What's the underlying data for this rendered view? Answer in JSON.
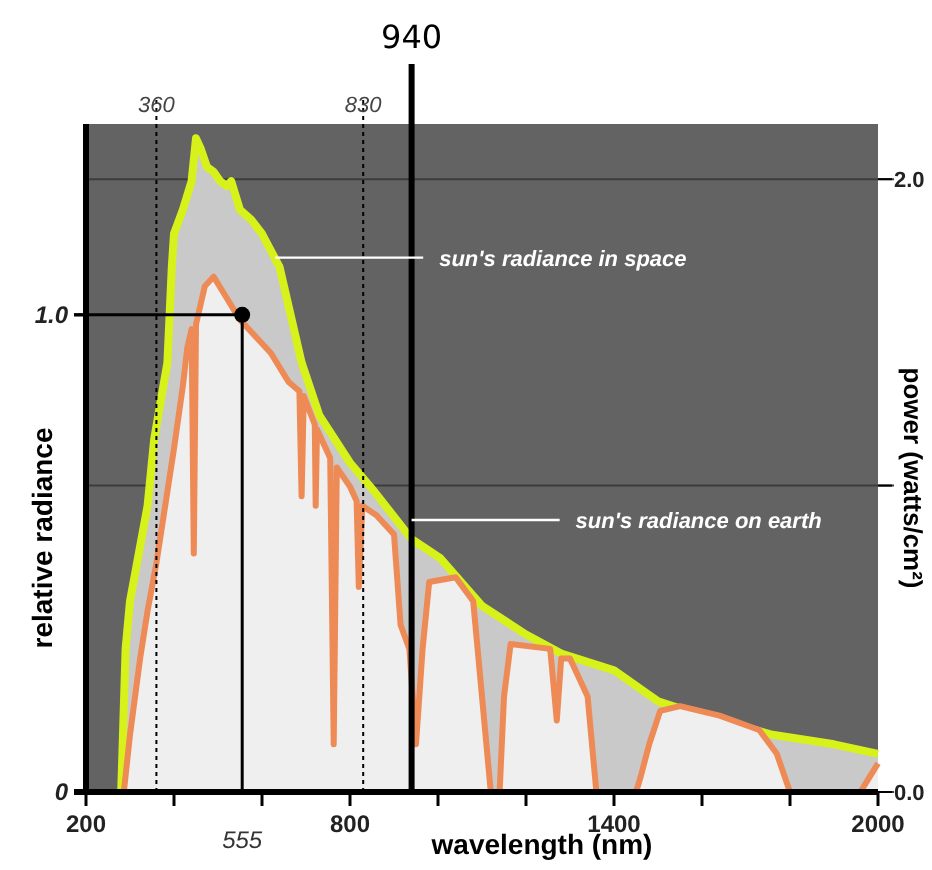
{
  "chart_data": {
    "type": "area",
    "xlabel": "wavelength (nm)",
    "ylabel": "relative radiance",
    "y2label": "power (watts/cm²)",
    "xlim": [
      200,
      2000
    ],
    "xticks": [
      200,
      {
        "value": 400,
        "label": null
      },
      {
        "value": 600,
        "label": null
      },
      800,
      {
        "value": 1000,
        "label": null
      },
      {
        "value": 1200,
        "label": null
      },
      1400,
      {
        "value": 1600,
        "label": null
      },
      {
        "value": 1800,
        "label": null
      },
      2000
    ],
    "ylim": [
      0,
      1.4
    ],
    "yticks": [
      0,
      {
        "value": 1,
        "label": "1.0"
      }
    ],
    "y2lim": [
      0,
      2.18
    ],
    "y2ticks": [
      {
        "value": 0,
        "label": "0.0"
      },
      {
        "value": 1,
        "label": null
      },
      {
        "value": 2,
        "label": "2.0"
      }
    ],
    "grid": "y2",
    "annotations": [
      {
        "text": "sun's radiance in space",
        "x": 630,
        "y": 1.12
      },
      {
        "text": "sun's radiance on earth",
        "x": 940,
        "y": 0.57
      }
    ],
    "series": [
      {
        "color": "#d7f21a",
        "x": [
          280,
          290,
          300,
          320,
          340,
          355,
          370,
          385,
          395,
          400,
          420,
          440,
          450,
          460,
          475,
          490,
          505,
          520,
          530,
          550,
          575,
          600,
          640,
          690,
          730,
          800,
          855,
          940,
          1005,
          1100,
          1200,
          1280,
          1400,
          1500,
          1600,
          1760,
          1900,
          2000
        ],
        "values": [
          0,
          0.3,
          0.4,
          0.5,
          0.6,
          0.74,
          0.82,
          0.9,
          1.1,
          1.17,
          1.22,
          1.28,
          1.37,
          1.35,
          1.31,
          1.3,
          1.28,
          1.27,
          1.28,
          1.22,
          1.2,
          1.17,
          1.1,
          0.9,
          0.79,
          0.69,
          0.63,
          0.53,
          0.49,
          0.39,
          0.33,
          0.29,
          0.255,
          0.19,
          0.16,
          0.12,
          0.1,
          0.08
        ]
      },
      {
        "color": "#ee8a55",
        "x": [
          286,
          300,
          323,
          340,
          360,
          380,
          400,
          420,
          430,
          440,
          445,
          450,
          470,
          490,
          510,
          530,
          550,
          580,
          620,
          660,
          685,
          690,
          695,
          720,
          722,
          725,
          755,
          763,
          770,
          800,
          815,
          820,
          828,
          860,
          900,
          915,
          935,
          950,
          965,
          980,
          1040,
          1080,
          1110,
          1120,
          1140,
          1150,
          1165,
          1255,
          1270,
          1280,
          1300,
          1340,
          1360,
          1450,
          1460,
          1480,
          1505,
          1550,
          1640,
          1730,
          1770,
          1800,
          1960,
          1980,
          2000
        ],
        "values": [
          0,
          0.12,
          0.28,
          0.38,
          0.48,
          0.6,
          0.72,
          0.85,
          0.93,
          0.97,
          0.5,
          0.98,
          1.06,
          1.08,
          1.05,
          1.02,
          0.99,
          0.96,
          0.92,
          0.86,
          0.84,
          0.62,
          0.83,
          0.77,
          0.6,
          0.76,
          0.7,
          0.1,
          0.68,
          0.64,
          0.61,
          0.43,
          0.6,
          0.58,
          0.54,
          0.35,
          0.3,
          0.1,
          0.3,
          0.44,
          0.45,
          0.4,
          0.1,
          0,
          0,
          0.2,
          0.31,
          0.3,
          0.15,
          0.28,
          0.28,
          0.2,
          0,
          0,
          0.03,
          0.1,
          0.17,
          0.18,
          0.16,
          0.13,
          0.08,
          0,
          0,
          0.03,
          0.06
        ]
      },
      {
        "type": "scatter",
        "color": "#000000",
        "x": [
          555
        ],
        "values": [
          1.0
        ],
        "marker": "circle"
      }
    ],
    "ref_lines": [
      {
        "axis": "x",
        "value": 360,
        "label": "360",
        "line_style": "dotted",
        "color": "#000000"
      },
      {
        "axis": "x",
        "value": 830,
        "label": "830",
        "line_style": "dotted",
        "color": "#000000"
      },
      {
        "axis": "x",
        "value": 940,
        "label": "940",
        "line_style": "solid",
        "color": "#000000"
      },
      {
        "axis": "x",
        "value": 555,
        "label": "555",
        "line_style": "solid",
        "color": "#000000"
      },
      {
        "axis": "y",
        "value": 1.0,
        "label": null,
        "line_style": "solid",
        "color": "#000000"
      }
    ]
  }
}
